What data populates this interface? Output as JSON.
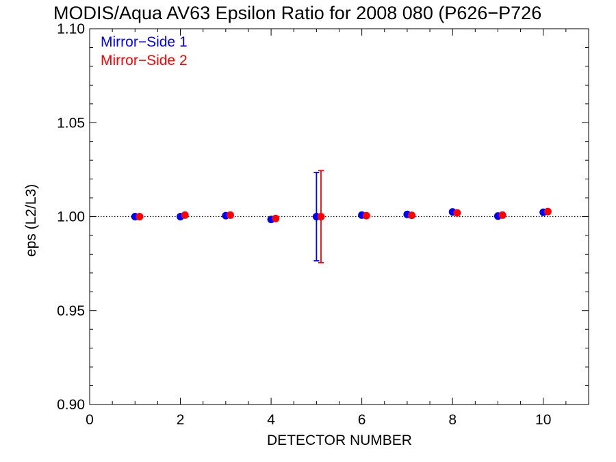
{
  "chart_data": {
    "type": "scatter",
    "title": "MODIS/Aqua AV63 Epsilon Ratio for 2008 080 (P626−P726",
    "xlabel": "DETECTOR NUMBER",
    "ylabel": "eps (L2/L3)",
    "xlim": [
      0,
      11
    ],
    "ylim": [
      0.9,
      1.1
    ],
    "x_ticks": [
      0,
      2,
      4,
      6,
      8,
      10
    ],
    "x_tick_labels": [
      "0",
      "2",
      "4",
      "6",
      "8",
      "10"
    ],
    "y_ticks": [
      0.9,
      0.95,
      1.0,
      1.05,
      1.1
    ],
    "y_tick_labels": [
      "0.90",
      "0.95",
      "1.00",
      "1.05",
      "1.10"
    ],
    "reference_line": {
      "y": 1.0,
      "style": "dotted"
    },
    "legend_placement": "top-left",
    "series": [
      {
        "name": "Mirror−Side 1",
        "color": "#0000ff",
        "x": [
          1,
          2,
          3,
          4,
          5,
          6,
          7,
          8,
          9,
          10
        ],
        "y": [
          1.0,
          1.0,
          1.0005,
          0.9985,
          1.0,
          1.0008,
          1.0012,
          1.0025,
          1.0003,
          1.0023
        ],
        "error_bars": [
          {
            "x": 5,
            "low": 0.9765,
            "high": 1.0235
          }
        ]
      },
      {
        "name": "Mirror−Side 2",
        "color": "#ff0000",
        "x": [
          1.1,
          2.1,
          3.1,
          4.1,
          5.1,
          6.1,
          7.1,
          8.1,
          9.1,
          10.1
        ],
        "y": [
          1.0,
          1.0008,
          1.0008,
          0.999,
          1.0,
          1.0005,
          1.0007,
          1.002,
          1.0008,
          1.0027
        ],
        "error_bars": [
          {
            "x": 5.1,
            "low": 0.9755,
            "high": 1.0245
          }
        ]
      }
    ]
  }
}
